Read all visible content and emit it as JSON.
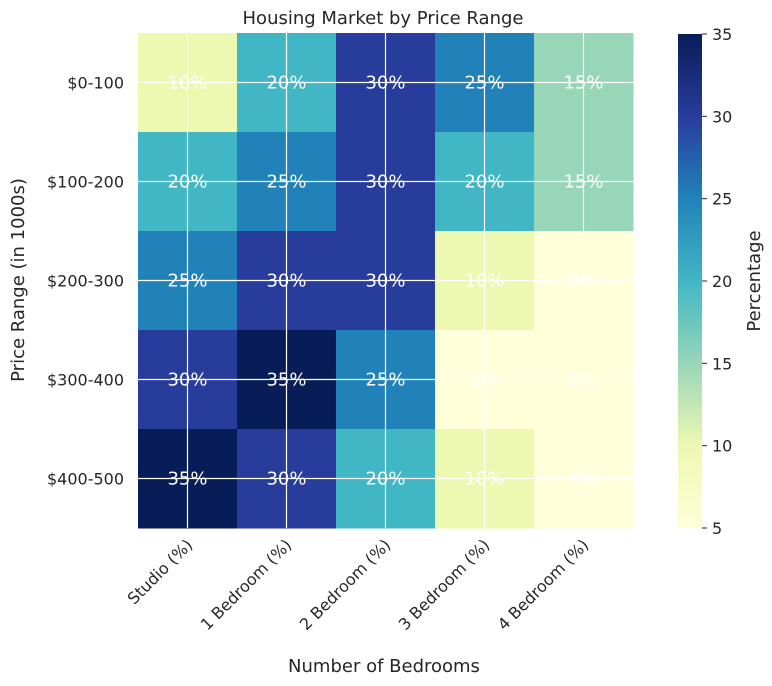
{
  "chart_data": {
    "type": "heatmap",
    "title": "Housing Market by Price Range",
    "xlabel": "Number of Bedrooms",
    "ylabel": "Price Range (in 1000s)",
    "x_categories": [
      "Studio (%)",
      "1 Bedroom (%)",
      "2 Bedroom (%)",
      "3 Bedroom (%)",
      "4 Bedroom (%)"
    ],
    "y_categories": [
      "$0-100",
      "$100-200",
      "$200-300",
      "$300-400",
      "$400-500"
    ],
    "values": [
      [
        10,
        20,
        30,
        25,
        15
      ],
      [
        20,
        25,
        30,
        20,
        15
      ],
      [
        25,
        30,
        30,
        10,
        5
      ],
      [
        30,
        35,
        25,
        5,
        5
      ],
      [
        35,
        30,
        20,
        10,
        5
      ]
    ],
    "value_suffix": "%",
    "colormap": "YlGnBu",
    "colorbar": {
      "label": "Percentage",
      "range": [
        5,
        35
      ],
      "ticks": [
        5,
        10,
        15,
        20,
        25,
        30,
        35
      ]
    },
    "grid": true
  }
}
